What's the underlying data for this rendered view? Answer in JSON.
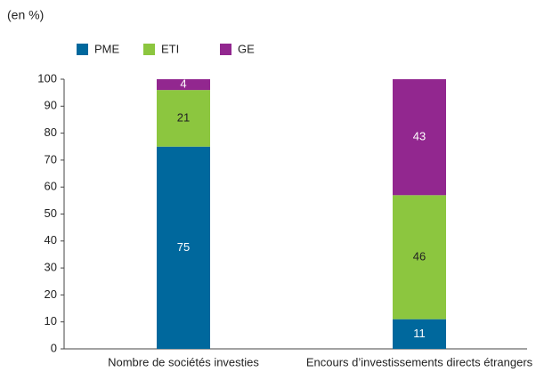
{
  "chart_data": {
    "type": "stacked_bar",
    "title": "(en %)",
    "categories": [
      "Nombre de sociétés investies",
      "Encours d’investissements directs étrangers"
    ],
    "series": [
      {
        "name": "PME",
        "color": "#00689d",
        "values": [
          75,
          11
        ]
      },
      {
        "name": "ETI",
        "color": "#8cc63f",
        "values": [
          21,
          46
        ]
      },
      {
        "name": "GE",
        "color": "#92278f",
        "values": [
          4,
          43
        ]
      }
    ],
    "ylim": [
      0,
      100
    ],
    "yticks": [
      0,
      10,
      20,
      30,
      40,
      50,
      60,
      70,
      80,
      90,
      100
    ],
    "grid": false,
    "legend": "top"
  }
}
